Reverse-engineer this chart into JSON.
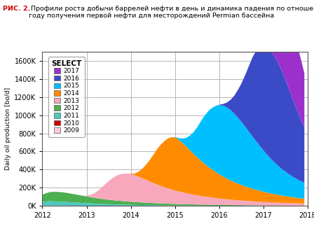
{
  "title_bold": "РИС. 2.",
  "title_normal": " Профили роста добычи баррелей нефти в день и динамика падения по отношению к\nгоду получения первой нефти для месторождений Permian бассейна",
  "ylabel": "Daily oil production [bo/d]",
  "legend_title": "SELECT",
  "xlim": [
    2012,
    2018
  ],
  "ylim": [
    0,
    1700000
  ],
  "yticks": [
    0,
    200000,
    400000,
    600000,
    800000,
    1000000,
    1200000,
    1400000,
    1600000
  ],
  "xticks": [
    2012,
    2013,
    2014,
    2015,
    2016,
    2017,
    2018
  ],
  "series": {
    "2009": {
      "color": "#FFCDD8",
      "values": [
        5000,
        4800,
        4600,
        4400,
        4200,
        4000,
        3800,
        3600,
        3400,
        3200,
        3000,
        2800,
        2600,
        2400,
        2200,
        2000,
        1900,
        1800,
        1700,
        1600,
        1500,
        1400,
        1300,
        1200,
        1100,
        1000,
        950,
        900,
        850,
        800,
        750,
        700,
        660,
        620,
        580,
        540,
        510,
        480,
        450,
        420,
        395,
        370,
        350,
        330,
        310,
        295,
        280,
        265,
        252,
        240,
        228,
        217,
        207,
        197,
        188,
        179,
        171,
        163,
        156,
        149,
        142,
        136,
        130,
        124,
        119,
        114,
        109,
        104,
        99,
        95,
        91,
        87
      ]
    },
    "2010": {
      "color": "#CC0000",
      "values": [
        1500,
        1450,
        1400,
        1350,
        1300,
        1250,
        1200,
        1150,
        1100,
        1050,
        1000,
        950,
        900,
        850,
        800,
        750,
        710,
        670,
        630,
        590,
        560,
        530,
        500,
        470,
        445,
        420,
        398,
        377,
        358,
        340,
        323,
        307,
        292,
        278,
        264,
        251,
        239,
        227,
        216,
        205,
        195,
        185,
        176,
        167,
        159,
        151,
        143,
        136,
        130,
        123,
        117,
        111,
        106,
        101,
        96,
        91,
        87,
        83,
        79,
        75,
        71,
        68,
        65,
        62,
        59,
        56,
        53,
        51,
        49,
        47,
        44,
        42
      ]
    },
    "2011": {
      "color": "#4DC8C0",
      "values": [
        40000,
        45000,
        48000,
        46000,
        44000,
        42000,
        40000,
        38000,
        36000,
        34000,
        32000,
        30000,
        28000,
        26000,
        24000,
        22000,
        20500,
        19000,
        17700,
        16500,
        15400,
        14400,
        13400,
        12500,
        11700,
        10900,
        10200,
        9600,
        9000,
        8500,
        8000,
        7500,
        7100,
        6700,
        6300,
        5950,
        5600,
        5300,
        5000,
        4700,
        4450,
        4200,
        3970,
        3750,
        3550,
        3350,
        3170,
        2990,
        2830,
        2670,
        2530,
        2390,
        2270,
        2150,
        2040,
        1930,
        1830,
        1740,
        1650,
        1570,
        1490,
        1420,
        1350,
        1290,
        1230,
        1170,
        1120,
        1070,
        1020,
        973,
        929,
        886
      ]
    },
    "2012": {
      "color": "#4CAF50",
      "values": [
        80000,
        92000,
        100000,
        105000,
        107000,
        106000,
        103000,
        99000,
        94000,
        89000,
        84000,
        79000,
        74000,
        69000,
        64000,
        60000,
        56000,
        52000,
        49000,
        46000,
        43000,
        40500,
        38000,
        35800,
        33700,
        31700,
        29900,
        28200,
        26600,
        25100,
        23700,
        22400,
        21200,
        20100,
        19000,
        18000,
        17100,
        16200,
        15400,
        14600,
        13900,
        13200,
        12500,
        11900,
        11300,
        10700,
        10200,
        9700,
        9200,
        8800,
        8300,
        7900,
        7500,
        7200,
        6800,
        6500,
        6200,
        5900,
        5600,
        5400,
        5100,
        4900,
        4600,
        4400,
        4200,
        4000,
        3800,
        3650,
        3490,
        3340,
        3200,
        3060
      ]
    },
    "2013": {
      "color": "#F8A8BC",
      "values": [
        0,
        0,
        0,
        0,
        0,
        0,
        0,
        0,
        0,
        0,
        0,
        0,
        10000,
        25000,
        50000,
        85000,
        125000,
        170000,
        210000,
        245000,
        275000,
        295000,
        305000,
        308000,
        305000,
        296000,
        283000,
        268000,
        253000,
        237000,
        222000,
        207000,
        193000,
        180000,
        168000,
        157000,
        147000,
        138000,
        129000,
        121000,
        114000,
        107000,
        100500,
        94500,
        89000,
        84000,
        79000,
        74500,
        70500,
        66500,
        63000,
        59500,
        56500,
        53500,
        51000,
        48500,
        46000,
        43800,
        41700,
        39700,
        37900,
        36100,
        34400,
        32800,
        31300,
        29900,
        28500,
        27200,
        26000,
        24900,
        23800,
        22800
      ]
    },
    "2014": {
      "color": "#FF8C00",
      "values": [
        0,
        0,
        0,
        0,
        0,
        0,
        0,
        0,
        0,
        0,
        0,
        0,
        0,
        0,
        0,
        0,
        0,
        0,
        0,
        0,
        0,
        0,
        0,
        0,
        5000,
        20000,
        55000,
        105000,
        165000,
        235000,
        310000,
        390000,
        455000,
        510000,
        555000,
        580000,
        585000,
        570000,
        545000,
        515000,
        482000,
        450000,
        418000,
        388000,
        360000,
        334000,
        309000,
        286000,
        265000,
        246000,
        228000,
        212000,
        197000,
        183000,
        171000,
        159000,
        148000,
        138000,
        129000,
        120000,
        112000,
        104000,
        97000,
        91000,
        85000,
        79500,
        74300,
        69500,
        65100,
        61000,
        57300,
        53700
      ]
    },
    "2015": {
      "color": "#00BFFF",
      "values": [
        0,
        0,
        0,
        0,
        0,
        0,
        0,
        0,
        0,
        0,
        0,
        0,
        0,
        0,
        0,
        0,
        0,
        0,
        0,
        0,
        0,
        0,
        0,
        0,
        0,
        0,
        0,
        0,
        0,
        0,
        0,
        0,
        0,
        0,
        0,
        0,
        5000,
        20000,
        50000,
        100000,
        165000,
        245000,
        340000,
        445000,
        540000,
        620000,
        685000,
        735000,
        768000,
        785000,
        788000,
        778000,
        758000,
        730000,
        696000,
        658000,
        617000,
        576000,
        534000,
        494000,
        454000,
        416000,
        381000,
        348000,
        318000,
        291000,
        267000,
        245000,
        225000,
        207000,
        191000,
        177000
      ]
    },
    "2016": {
      "color": "#3B4BC8",
      "values": [
        0,
        0,
        0,
        0,
        0,
        0,
        0,
        0,
        0,
        0,
        0,
        0,
        0,
        0,
        0,
        0,
        0,
        0,
        0,
        0,
        0,
        0,
        0,
        0,
        0,
        0,
        0,
        0,
        0,
        0,
        0,
        0,
        0,
        0,
        0,
        0,
        0,
        0,
        0,
        0,
        0,
        0,
        0,
        0,
        0,
        0,
        0,
        0,
        5000,
        20000,
        55000,
        115000,
        200000,
        310000,
        435000,
        580000,
        735000,
        885000,
        1010000,
        1100000,
        1160000,
        1190000,
        1195000,
        1175000,
        1135000,
        1080000,
        1010000,
        930000,
        848000,
        766000,
        687000,
        612000
      ]
    },
    "2017": {
      "color": "#9B30CC",
      "values": [
        0,
        0,
        0,
        0,
        0,
        0,
        0,
        0,
        0,
        0,
        0,
        0,
        0,
        0,
        0,
        0,
        0,
        0,
        0,
        0,
        0,
        0,
        0,
        0,
        0,
        0,
        0,
        0,
        0,
        0,
        0,
        0,
        0,
        0,
        0,
        0,
        0,
        0,
        0,
        0,
        0,
        0,
        0,
        0,
        0,
        0,
        0,
        0,
        0,
        0,
        0,
        0,
        0,
        0,
        0,
        0,
        0,
        0,
        0,
        0,
        5000,
        30000,
        90000,
        200000,
        360000,
        520000,
        650000,
        730000,
        750000,
        720000,
        670000,
        600000
      ]
    }
  },
  "x_start": 2012.0,
  "x_step": 0.08333,
  "n_points": 72,
  "background_color": "#ffffff",
  "grid_color": "#aaaaaa",
  "title_color_bold": "#CC0000",
  "title_color_normal": "#000000"
}
